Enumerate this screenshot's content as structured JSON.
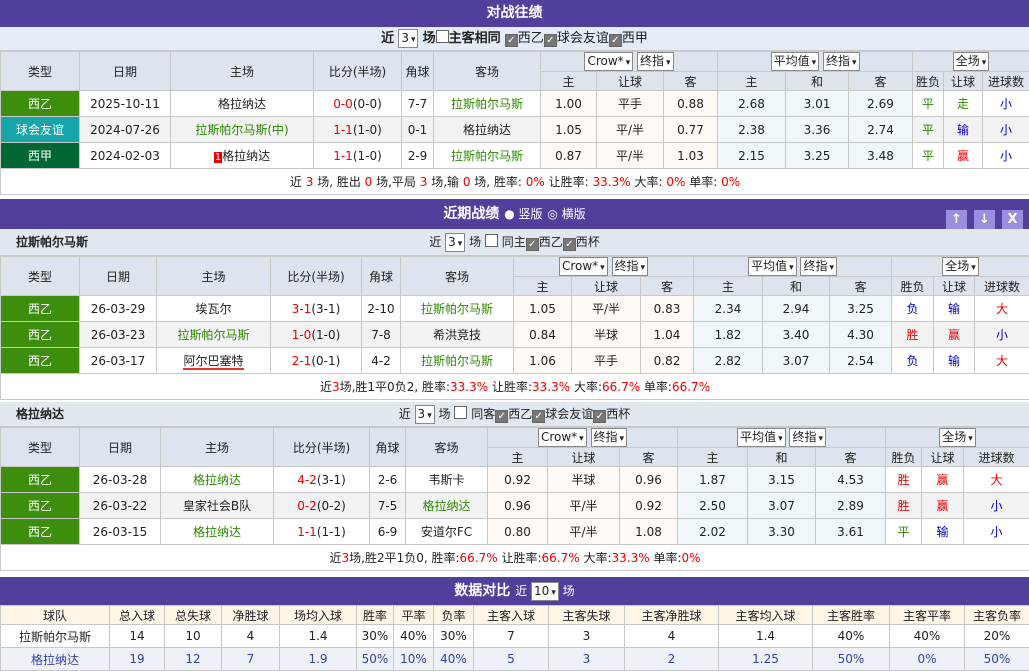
{
  "h2h": {
    "title": "对战往绩",
    "near": "近",
    "count": "3",
    "unit": "场",
    "same": "主客相同",
    "leagues": [
      "西乙",
      "球会友谊",
      "西甲"
    ],
    "head": {
      "type": "类型",
      "date": "日期",
      "home": "主场",
      "score": "比分(半场)",
      "corner": "角球",
      "away": "客场",
      "crow": "Crow*",
      "final": "终指",
      "avg": "平均值",
      "final2": "终指",
      "full": "全场",
      "h": "主",
      "ah": "让球",
      "a": "客",
      "h2": "主",
      "d": "和",
      "a2": "客",
      "res": "胜负",
      "ahr": "让球",
      "ou": "进球数"
    },
    "rows": [
      {
        "type": "西乙",
        "color": "#3e8e0e",
        "date": "2025-10-11",
        "home": "格拉纳达",
        "hg": false,
        "score": "0-0",
        "half": "(0-0)",
        "corner": "7-7",
        "away": "拉斯帕尔马斯",
        "ag": true,
        "o": [
          "1.00",
          "平手",
          "0.88"
        ],
        "e": [
          "2.68",
          "3.01",
          "2.69"
        ],
        "res": "平",
        "ahr": "走",
        "ou": "小"
      },
      {
        "type": "球会友谊",
        "color": "#16a5a8",
        "date": "2024-07-26",
        "home": "拉斯帕尔马斯(中)",
        "hg": true,
        "score": "1-1",
        "half": "(1-0)",
        "corner": "0-1",
        "away": "格拉纳达",
        "ag": false,
        "o": [
          "1.05",
          "平/半",
          "0.77"
        ],
        "e": [
          "2.38",
          "3.36",
          "2.74"
        ],
        "res": "平",
        "ahr": "输",
        "ou": "小"
      },
      {
        "type": "西甲",
        "color": "#006633",
        "date": "2024-02-03",
        "badge": "1",
        "home": "格拉纳达",
        "hg": false,
        "score": "1-1",
        "half": "(1-0)",
        "corner": "2-9",
        "away": "拉斯帕尔马斯",
        "ag": true,
        "o": [
          "0.87",
          "平/半",
          "1.03"
        ],
        "e": [
          "2.15",
          "3.25",
          "3.48"
        ],
        "res": "平",
        "ahr": "赢",
        "ou": "小"
      }
    ],
    "summary": [
      [
        "近 ",
        ""
      ],
      [
        "3",
        "r"
      ],
      [
        " 场, 胜出 ",
        ""
      ],
      [
        "0",
        "r"
      ],
      [
        " 场,平局 ",
        ""
      ],
      [
        "3",
        "r"
      ],
      [
        " 场,输 ",
        ""
      ],
      [
        "0",
        "r"
      ],
      [
        " 场, 胜率: ",
        ""
      ],
      [
        "0%",
        "r"
      ],
      [
        " 让胜率: ",
        ""
      ],
      [
        "33.3%",
        "r"
      ],
      [
        " 大率: ",
        ""
      ],
      [
        "0%",
        "r"
      ],
      [
        " 单率: ",
        ""
      ],
      [
        "0%",
        "r"
      ]
    ]
  },
  "recent": {
    "title": "近期战绩",
    "opt1": "竖版",
    "opt2": "横版",
    "btn_up": "↑",
    "btn_down": "↓",
    "btn_close": "X"
  },
  "teamA": {
    "name": "拉斯帕尔马斯",
    "near": "近",
    "count": "3",
    "unit": "场",
    "same": "同主",
    "leagues": [
      "西乙",
      "西杯"
    ],
    "rows": [
      {
        "type": "西乙",
        "color": "#3e8e0e",
        "date": "26-03-29",
        "home": "埃瓦尔",
        "hg": false,
        "score": "3-1",
        "half": "(3-1)",
        "corner": "2-10",
        "away": "拉斯帕尔马斯",
        "ag": true,
        "o": [
          "1.05",
          "平/半",
          "0.83"
        ],
        "e": [
          "2.34",
          "2.94",
          "3.25"
        ],
        "res": "负",
        "ahr": "输",
        "ou": "大"
      },
      {
        "type": "西乙",
        "color": "#3e8e0e",
        "date": "26-03-23",
        "home": "拉斯帕尔马斯",
        "hg": true,
        "score": "1-0",
        "half": "(1-0)",
        "corner": "7-8",
        "away": "希洪竞技",
        "ag": false,
        "o": [
          "0.84",
          "半球",
          "1.04"
        ],
        "e": [
          "1.82",
          "3.40",
          "4.30"
        ],
        "res": "胜",
        "ahr": "赢",
        "ou": "小"
      },
      {
        "type": "西乙",
        "color": "#3e8e0e",
        "date": "26-03-17",
        "home": "阿尔巴塞特",
        "hg": false,
        "ul": true,
        "score": "2-1",
        "half": "(0-1)",
        "corner": "4-2",
        "away": "拉斯帕尔马斯",
        "ag": true,
        "o": [
          "1.06",
          "平手",
          "0.82"
        ],
        "e": [
          "2.82",
          "3.07",
          "2.54"
        ],
        "res": "负",
        "ahr": "输",
        "ou": "大"
      }
    ],
    "summary": [
      [
        "近",
        ""
      ],
      [
        "3",
        "r"
      ],
      [
        "场,胜1平0负2, 胜率:",
        ""
      ],
      [
        "33.3%",
        "r"
      ],
      [
        " 让胜率:",
        ""
      ],
      [
        "33.3%",
        "r"
      ],
      [
        " 大率:",
        ""
      ],
      [
        "66.7%",
        "r"
      ],
      [
        " 单率:",
        ""
      ],
      [
        "66.7%",
        "r"
      ]
    ]
  },
  "teamB": {
    "name": "格拉纳达",
    "near": "近",
    "count": "3",
    "unit": "场",
    "same": "同客",
    "leagues": [
      "西乙",
      "球会友谊",
      "西杯"
    ],
    "rows": [
      {
        "type": "西乙",
        "color": "#3e8e0e",
        "date": "26-03-28",
        "home": "格拉纳达",
        "hg": true,
        "score": "4-2",
        "half": "(3-1)",
        "corner": "2-6",
        "away": "韦斯卡",
        "ag": false,
        "o": [
          "0.92",
          "半球",
          "0.96"
        ],
        "e": [
          "1.87",
          "3.15",
          "4.53"
        ],
        "res": "胜",
        "ahr": "赢",
        "ou": "大"
      },
      {
        "type": "西乙",
        "color": "#3e8e0e",
        "date": "26-03-22",
        "home": "皇家社会B队",
        "hg": false,
        "score": "0-2",
        "half": "(0-2)",
        "corner": "7-5",
        "away": "格拉纳达",
        "ag": true,
        "o": [
          "0.96",
          "平/半",
          "0.92"
        ],
        "e": [
          "2.50",
          "3.07",
          "2.89"
        ],
        "res": "胜",
        "ahr": "赢",
        "ou": "小"
      },
      {
        "type": "西乙",
        "color": "#3e8e0e",
        "date": "26-03-15",
        "home": "格拉纳达",
        "hg": true,
        "score": "1-1",
        "half": "(1-1)",
        "corner": "6-9",
        "away": "安道尔FC",
        "ag": false,
        "o": [
          "0.80",
          "平/半",
          "1.08"
        ],
        "e": [
          "2.02",
          "3.30",
          "3.61"
        ],
        "res": "平",
        "ahr": "输",
        "ou": "小"
      }
    ],
    "summary": [
      [
        "近",
        ""
      ],
      [
        "3",
        "r"
      ],
      [
        "场,胜2平1负0, 胜率:",
        ""
      ],
      [
        "66.7%",
        "r"
      ],
      [
        " 让胜率:",
        ""
      ],
      [
        "66.7%",
        "r"
      ],
      [
        " 大率:",
        ""
      ],
      [
        "33.3%",
        "r"
      ],
      [
        " 单率:",
        ""
      ],
      [
        "0%",
        "r"
      ]
    ]
  },
  "compare": {
    "title": "数据对比",
    "near": "近",
    "count": "10",
    "unit": "场",
    "headers": [
      "球队",
      "总入球",
      "总失球",
      "净胜球",
      "场均入球",
      "胜率",
      "平率",
      "负率",
      "主客入球",
      "主客失球",
      "主客净胜球",
      "主客均入球",
      "主客胜率",
      "主客平率",
      "主客负率"
    ],
    "rows": [
      [
        "拉斯帕尔马斯",
        "14",
        "10",
        "4",
        "1.4",
        "30%",
        "40%",
        "30%",
        "7",
        "3",
        "4",
        "1.4",
        "40%",
        "40%",
        "20%"
      ],
      [
        "格拉纳达",
        "19",
        "12",
        "7",
        "1.9",
        "50%",
        "10%",
        "40%",
        "5",
        "3",
        "2",
        "1.25",
        "50%",
        "0%",
        "50%"
      ]
    ]
  }
}
